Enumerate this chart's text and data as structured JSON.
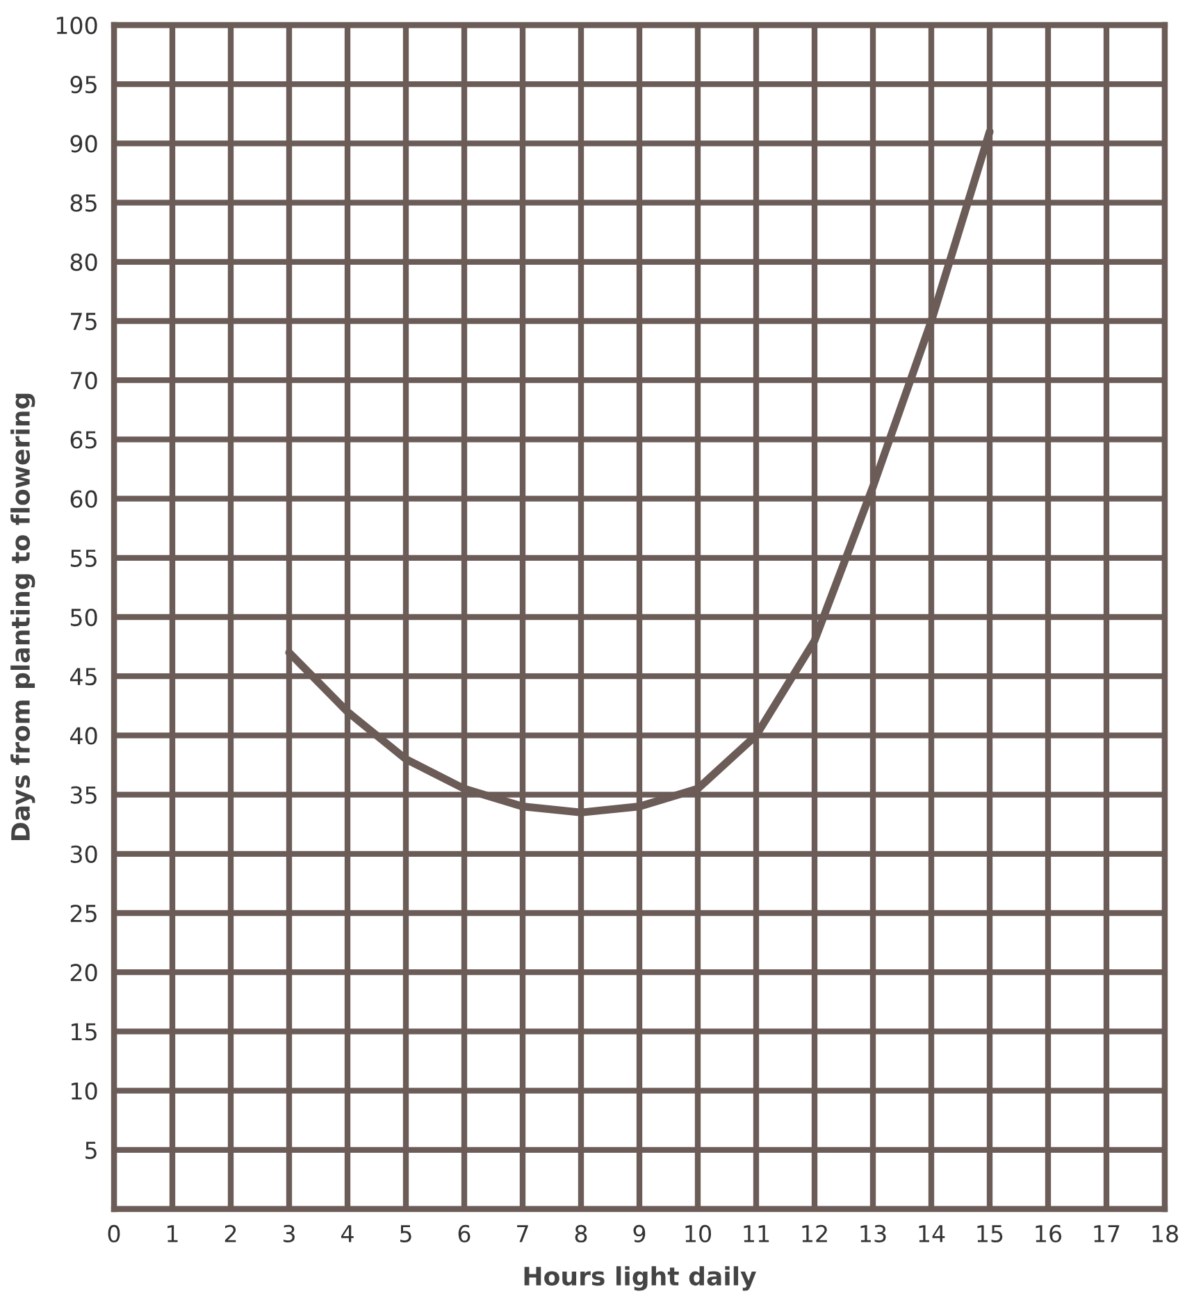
{
  "chart_data": {
    "type": "line",
    "xlabel": "Hours light daily",
    "ylabel": "Days from planting to flowering",
    "x": [
      3,
      4,
      5,
      6,
      7,
      8,
      9,
      10,
      11,
      12,
      13,
      14,
      15
    ],
    "series": [
      {
        "color": "#6b5c58",
        "values": [
          47,
          42,
          38,
          35.5,
          34,
          33.5,
          34,
          35.5,
          40,
          48,
          61,
          75,
          91
        ]
      }
    ],
    "xlim": [
      0,
      18
    ],
    "ylim": [
      0,
      100
    ],
    "xticks": [
      0,
      1,
      2,
      3,
      4,
      5,
      6,
      7,
      8,
      9,
      10,
      11,
      12,
      13,
      14,
      15,
      16,
      17,
      18
    ],
    "yticks": [
      {
        "value": 0,
        "label": null
      },
      5,
      10,
      15,
      20,
      25,
      30,
      35,
      40,
      45,
      50,
      55,
      60,
      65,
      70,
      75,
      80,
      85,
      90,
      95,
      100
    ],
    "grid": true,
    "marker": "none",
    "line_style": "solid"
  }
}
